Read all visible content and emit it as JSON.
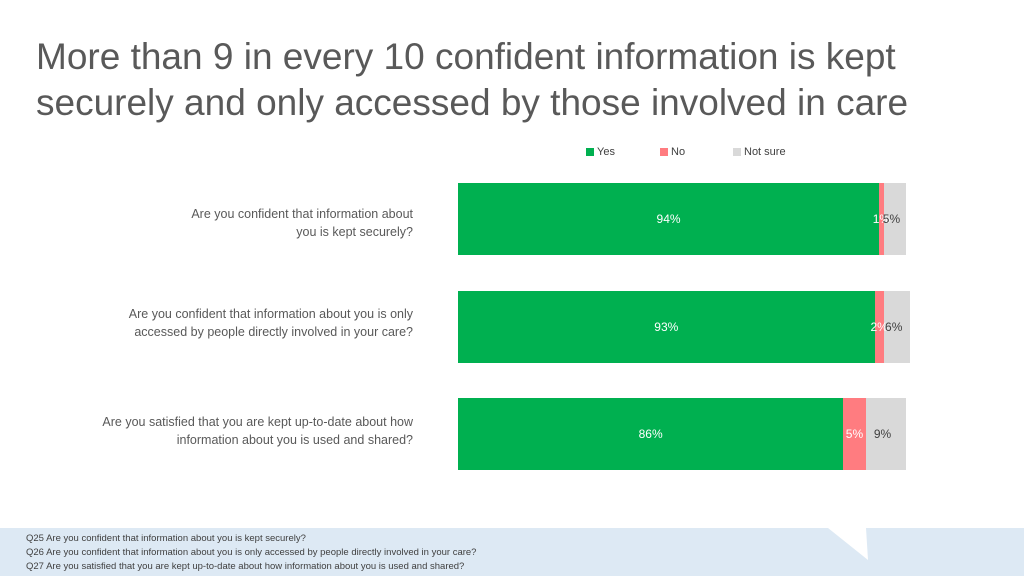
{
  "title": "More than 9 in every 10 confident information is kept securely and only accessed by those involved in care",
  "colors": {
    "yes": "#00b050",
    "no": "#ff7c80",
    "not_sure": "#d9d9d9"
  },
  "chart_data": {
    "type": "bar",
    "orientation": "horizontal",
    "stacked": true,
    "categories": [
      "Are you confident that information about you is kept securely?",
      "Are you confident that information about you is only accessed by people directly involved in your care?",
      "Are you satisfied that you are kept up-to-date about how information about you is used and shared?"
    ],
    "series": [
      {
        "name": "Yes",
        "values": [
          94,
          93,
          86
        ],
        "labels": [
          "94%",
          "93%",
          "86%"
        ]
      },
      {
        "name": "No",
        "values": [
          1,
          2,
          5
        ],
        "labels": [
          "1%",
          "2%",
          "5%"
        ]
      },
      {
        "name": "Not sure",
        "values": [
          5,
          6,
          9
        ],
        "labels": [
          "5%",
          "6%",
          "9%"
        ]
      }
    ],
    "xlim": [
      0,
      100
    ],
    "legend": "top"
  },
  "questions": [
    {
      "line1": "Are you confident that information about",
      "line2": "you is kept securely?"
    },
    {
      "line1": "Are you confident that information about you is only",
      "line2": "accessed by people directly involved in your care?"
    },
    {
      "line1": "Are you satisfied that you are kept up-to-date about how",
      "line2": "information about you is used and shared?"
    }
  ],
  "footer": {
    "lines": [
      "Q25 Are you confident that information about you is kept securely?",
      "Q26 Are you confident that information about you is only accessed by people directly involved in your care?",
      "Q27 Are you satisfied that you are kept up-to-date about how information about you is used and shared?"
    ]
  }
}
